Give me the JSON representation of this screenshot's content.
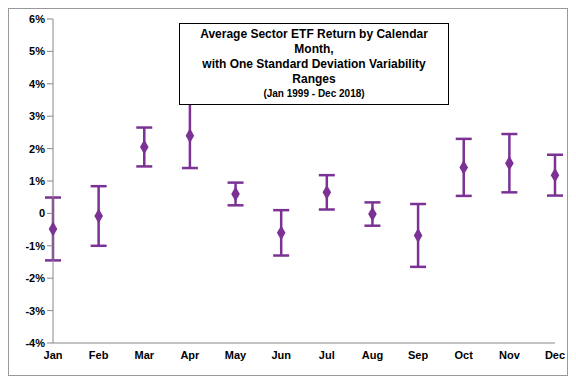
{
  "chart_data": {
    "type": "scatter",
    "title": "Average Sector ETF Return by Calendar Month, with One Standard Deviation Variability Ranges",
    "subtitle": "(Jan 1999 - Dec 2018)",
    "categories": [
      "Jan",
      "Feb",
      "Mar",
      "Apr",
      "May",
      "Jun",
      "Jul",
      "Aug",
      "Sep",
      "Oct",
      "Nov",
      "Dec"
    ],
    "values": [
      -0.48,
      -0.08,
      2.05,
      2.4,
      0.6,
      -0.6,
      0.65,
      -0.02,
      -0.68,
      1.42,
      1.55,
      1.18
    ],
    "errors": [
      0.97,
      0.92,
      0.6,
      1.0,
      0.35,
      0.7,
      0.53,
      0.36,
      0.97,
      0.88,
      0.9,
      0.63
    ],
    "color": "#7b3294",
    "marker": "diamond",
    "grid": false,
    "ylim": [
      -4,
      6
    ],
    "yticks": [
      {
        "value": -4,
        "label": "-4%"
      },
      {
        "value": -3,
        "label": "-3%"
      },
      {
        "value": -2,
        "label": "-2%"
      },
      {
        "value": -1,
        "label": "-1%"
      },
      0,
      {
        "value": 1,
        "label": "1%"
      },
      {
        "value": 2,
        "label": "2%"
      },
      {
        "value": 3,
        "label": "3%"
      },
      {
        "value": 4,
        "label": "4%"
      },
      {
        "value": 5,
        "label": "5%"
      },
      {
        "value": 6,
        "label": "6%"
      }
    ]
  }
}
